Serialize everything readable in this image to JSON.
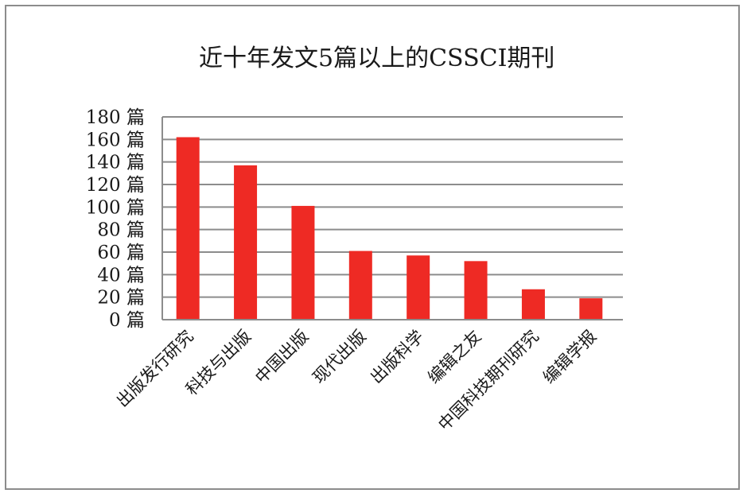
{
  "chart_data": {
    "type": "bar",
    "title": "近十年发文5篇以上的CSSCI期刊",
    "xlabel": "",
    "ylabel": "",
    "ylim": [
      0,
      180
    ],
    "yticks": [
      0,
      20,
      40,
      60,
      80,
      100,
      120,
      140,
      160,
      180
    ],
    "tick_unit": "篇",
    "grid": true,
    "legend": "none",
    "categories": [
      "出版发行研究",
      "科技与出版",
      "中国出版",
      "现代出版",
      "出版科学",
      "编辑之友",
      "中国科技期刊研究",
      "编辑学报"
    ],
    "values": [
      162,
      137,
      101,
      61,
      57,
      52,
      27,
      19
    ],
    "colors": {
      "bar": "#ee2a24",
      "gridline": "#8c8c8c",
      "axis": "#8c8c8c",
      "text": "#1a1a1a"
    }
  }
}
